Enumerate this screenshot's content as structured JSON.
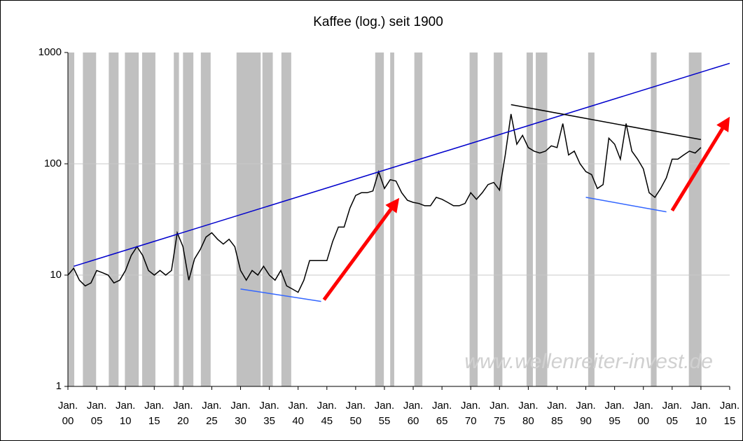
{
  "chart_data": {
    "type": "line",
    "title": "Kaffee (log.) seit 1900",
    "watermark": "www.wellenreiter-invest.de",
    "log_scale": "y",
    "grid": true,
    "xlim": [
      1900,
      2015
    ],
    "ylim": [
      1,
      1000
    ],
    "yticks": [
      1,
      10,
      100,
      1000
    ],
    "xticks": [
      {
        "value": 1900,
        "label": "Jan. 00"
      },
      {
        "value": 1905,
        "label": "Jan. 05"
      },
      {
        "value": 1910,
        "label": "Jan. 10"
      },
      {
        "value": 1915,
        "label": "Jan. 15"
      },
      {
        "value": 1920,
        "label": "Jan. 20"
      },
      {
        "value": 1925,
        "label": "Jan. 25"
      },
      {
        "value": 1930,
        "label": "Jan. 30"
      },
      {
        "value": 1935,
        "label": "Jan. 35"
      },
      {
        "value": 1940,
        "label": "Jan. 40"
      },
      {
        "value": 1945,
        "label": "Jan. 45"
      },
      {
        "value": 1950,
        "label": "Jan. 50"
      },
      {
        "value": 1955,
        "label": "Jan. 55"
      },
      {
        "value": 1960,
        "label": "Jan. 60"
      },
      {
        "value": 1965,
        "label": "Jan. 65"
      },
      {
        "value": 1970,
        "label": "Jan. 70"
      },
      {
        "value": 1975,
        "label": "Jan. 75"
      },
      {
        "value": 1980,
        "label": "Jan. 80"
      },
      {
        "value": 1985,
        "label": "Jan. 85"
      },
      {
        "value": 1990,
        "label": "Jan. 90"
      },
      {
        "value": 1995,
        "label": "Jan. 95"
      },
      {
        "value": 2000,
        "label": "Jan. 00"
      },
      {
        "value": 2005,
        "label": "Jan. 05"
      },
      {
        "value": 2010,
        "label": "Jan. 10"
      },
      {
        "value": 2015,
        "label": "Jan. 15"
      }
    ],
    "shaded_color": "#c0c0c0",
    "shaded_ranges": [
      [
        1900.0,
        1901.1
      ],
      [
        1902.6,
        1904.9
      ],
      [
        1907.1,
        1908.8
      ],
      [
        1909.9,
        1912.3
      ],
      [
        1912.9,
        1915.2
      ],
      [
        1918.4,
        1919.3
      ],
      [
        1920.0,
        1921.8
      ],
      [
        1923.1,
        1924.8
      ],
      [
        1929.3,
        1933.5
      ],
      [
        1933.8,
        1935.6
      ],
      [
        1937.1,
        1938.8
      ],
      [
        1953.4,
        1954.9
      ],
      [
        1956.0,
        1956.7
      ],
      [
        1960.2,
        1961.6
      ],
      [
        1969.8,
        1971.2
      ],
      [
        1974.0,
        1975.5
      ],
      [
        1979.7,
        1980.8
      ],
      [
        1981.3,
        1983.3
      ],
      [
        1990.4,
        1991.5
      ],
      [
        2001.3,
        2002.3
      ],
      [
        2007.9,
        2010.1
      ]
    ],
    "series": [
      {
        "color": "#000000",
        "x": [
          1900,
          1901,
          1902,
          1903,
          1904,
          1905,
          1906,
          1907,
          1908,
          1909,
          1910,
          1911,
          1912,
          1913,
          1914,
          1915,
          1916,
          1917,
          1918,
          1919,
          1920,
          1921,
          1922,
          1923,
          1924,
          1925,
          1926,
          1927,
          1928,
          1929,
          1930,
          1931,
          1932,
          1933,
          1934,
          1935,
          1936,
          1937,
          1938,
          1939,
          1940,
          1941,
          1942,
          1943,
          1944,
          1945,
          1946,
          1947,
          1948,
          1949,
          1950,
          1951,
          1952,
          1953,
          1954,
          1955,
          1956,
          1957,
          1958,
          1959,
          1960,
          1961,
          1962,
          1963,
          1964,
          1965,
          1966,
          1967,
          1968,
          1969,
          1970,
          1971,
          1972,
          1973,
          1974,
          1975,
          1976,
          1977,
          1978,
          1979,
          1980,
          1981,
          1982,
          1983,
          1984,
          1985,
          1986,
          1987,
          1988,
          1989,
          1990,
          1991,
          1992,
          1993,
          1994,
          1995,
          1996,
          1997,
          1998,
          1999,
          2000,
          2001,
          2002,
          2003,
          2004,
          2005,
          2006,
          2007,
          2008,
          2009,
          2010
        ],
        "values": [
          10,
          11.5,
          9,
          8,
          8.5,
          11,
          10.5,
          10,
          8.5,
          9,
          11,
          15,
          18,
          15,
          11,
          10,
          11,
          10,
          11,
          24,
          18,
          9,
          14,
          17,
          22,
          24,
          21,
          19,
          21,
          18,
          11,
          9,
          11,
          10,
          12,
          10,
          9,
          11,
          8,
          7.5,
          7,
          9,
          13.5,
          13.5,
          13.5,
          13.5,
          20,
          27,
          27,
          40,
          52,
          55,
          55,
          57,
          85,
          60,
          72,
          70,
          55,
          47,
          45,
          44,
          42,
          42,
          50,
          48,
          45,
          42,
          42,
          44,
          55,
          48,
          55,
          65,
          68,
          58,
          120,
          280,
          150,
          180,
          140,
          130,
          125,
          130,
          145,
          140,
          230,
          120,
          130,
          100,
          85,
          80,
          60,
          65,
          170,
          150,
          110,
          230,
          130,
          110,
          90,
          55,
          50,
          60,
          75,
          110,
          110,
          120,
          130,
          125,
          140
        ]
      }
    ],
    "annotations": [
      {
        "color": "#0000cc",
        "x": [
          1901,
          2015
        ],
        "values": [
          12,
          800
        ]
      },
      {
        "color": "#000000",
        "x": [
          1977,
          2010
        ],
        "values": [
          340,
          165
        ]
      },
      {
        "color": "#3366ff",
        "x": [
          1930,
          1944
        ],
        "values": [
          7.5,
          5.8
        ]
      },
      {
        "color": "#3366ff",
        "x": [
          1990,
          2004
        ],
        "values": [
          50,
          37
        ]
      },
      {
        "color": "#ff0000",
        "arrow": true,
        "x": [
          1944.5,
          1957
        ],
        "values": [
          6,
          45
        ]
      },
      {
        "color": "#ff0000",
        "arrow": true,
        "x": [
          2005,
          2014.5
        ],
        "values": [
          38,
          240
        ]
      }
    ]
  }
}
